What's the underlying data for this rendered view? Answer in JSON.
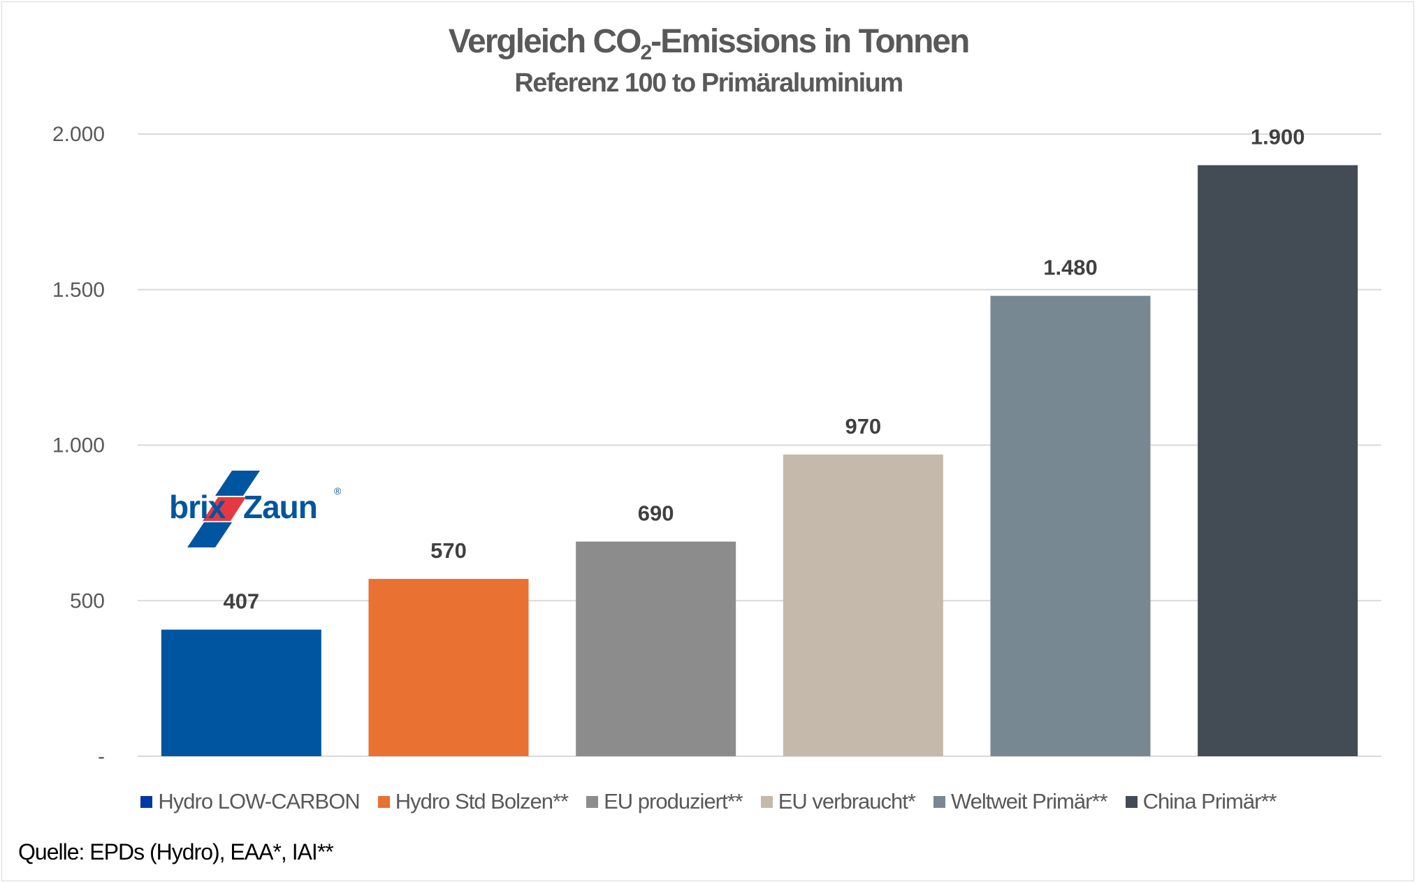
{
  "title_prefix": "Vergleich CO",
  "title_sub": "2",
  "title_suffix": "-Emissions in Tonnen",
  "subtitle": "Referenz 100 to Primäraluminium",
  "source": "Quelle: EPDs (Hydro), EAA*, IAI**",
  "logo": {
    "text_left": "brix",
    "text_right": "Zaun",
    "mark": "®",
    "colors": {
      "blue": "#0055A0",
      "red": "#E63843"
    }
  },
  "chart_data": {
    "type": "bar",
    "title": "Vergleich CO2-Emissions in Tonnen",
    "subtitle": "Referenz 100 to Primäraluminium",
    "categories": [
      "Hydro LOW-CARBON",
      "Hydro Std Bolzen**",
      "EU produziert**",
      "EU verbraucht*",
      "Weltweit Primär**",
      "China Primär**"
    ],
    "values": [
      407,
      570,
      690,
      970,
      1480,
      1900
    ],
    "value_labels": [
      "407",
      "570",
      "690",
      "970",
      "1.480",
      "1.900"
    ],
    "colors": [
      "#0055A0",
      "#E97132",
      "#8C8C8C",
      "#C5B9AB",
      "#778893",
      "#434B55"
    ],
    "legend_colors": [
      "#0039A6",
      "#E97132",
      "#8C8C8C",
      "#C5B9AB",
      "#778893",
      "#434B55"
    ],
    "yticks": [
      0,
      500,
      1000,
      1500,
      2000
    ],
    "ytick_labels": [
      "-",
      "500",
      "1.000",
      "1.500",
      "2.000"
    ],
    "ylim": [
      0,
      2000
    ],
    "grid": true,
    "legend_position": "bottom",
    "xlabel": "",
    "ylabel": ""
  }
}
